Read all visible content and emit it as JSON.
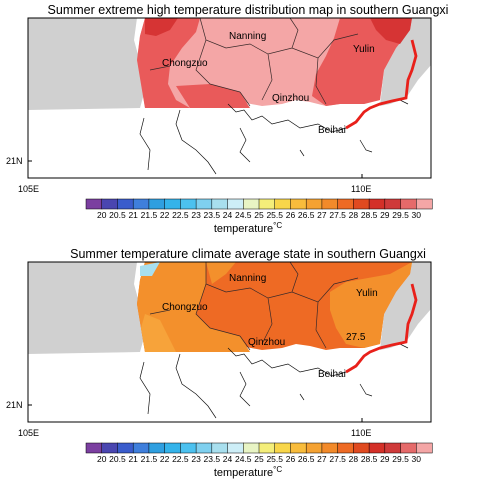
{
  "panels": [
    {
      "title": "Summer extreme high temperature distribution map in southern Guangxi",
      "places": [
        "Nanning",
        "Chongzuo",
        "Yulin",
        "Qinzhou",
        "Beihai"
      ],
      "contour_label": "",
      "lat_label": "21N",
      "lon_labels": [
        "105E",
        "110E"
      ],
      "colorbar_title": "temperature",
      "colorbar_unit": "°C",
      "fills": {
        "base": "#f4a6a6",
        "warm": "#e95a5a",
        "hot": "#d63434"
      }
    },
    {
      "title": "Summer temperature climate average state in southern Guangxi",
      "places": [
        "Nanning",
        "Chongzuo",
        "Yulin",
        "Qinzhou",
        "Beihai"
      ],
      "contour_label": "27.5",
      "lat_label": "21N",
      "lon_labels": [
        "105E",
        "110E"
      ],
      "colorbar_title": "temperature",
      "colorbar_unit": "°C",
      "fills": {
        "base": "#ee6a24",
        "warm": "#f3902c",
        "hot": "#f7a33a"
      }
    }
  ],
  "colorbar": {
    "ticks": [
      "20",
      "20.5",
      "21",
      "21.5",
      "22",
      "22.5",
      "23",
      "23.5",
      "24",
      "24.5",
      "25",
      "25.5",
      "26",
      "26.5",
      "27",
      "27.5",
      "28",
      "28.5",
      "29",
      "29.5",
      "30"
    ],
    "colors": [
      "#7b3fa0",
      "#4a46b0",
      "#3a5ccc",
      "#3f7fdc",
      "#2f9fe0",
      "#34b3ea",
      "#4cc1ef",
      "#7fd0ef",
      "#a8dfee",
      "#cdeef7",
      "#e8f4c4",
      "#f4ee7a",
      "#f8d64a",
      "#f8bc3c",
      "#f5a232",
      "#f28a2a",
      "#ee6a24",
      "#e04a20",
      "#d43028",
      "#cf3a3a",
      "#e56a6a",
      "#f4a6a6"
    ]
  },
  "coast_color": "#e8201a"
}
